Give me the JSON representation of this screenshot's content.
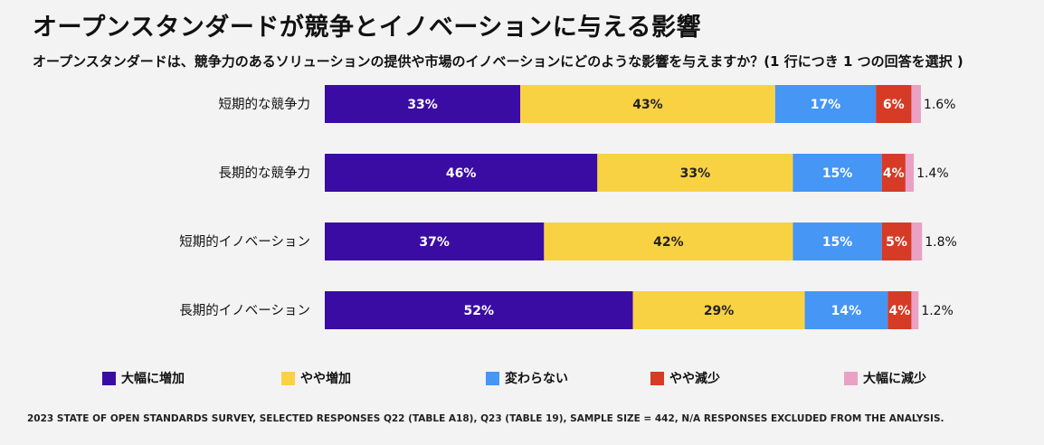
{
  "title": "オープンスタンダードが競争とイノベーションに与える影響",
  "subtitle": "オープンスタンダードは、競争力のあるソリューションの提供や市場のイノベーションにどのような影響を与えますか？(1 行につき 1 つの回答を選択 )",
  "footnote": "2023 STATE OF OPEN STANDARDS SURVEY, SELECTED RESPONSES Q22 (TABLE A18), Q23 (TABLE 19), SAMPLE SIZE = 442, N/A RESPONSES EXCLUDED FROM THE ANALYSIS.",
  "chart_data": {
    "type": "bar",
    "orientation": "horizontal",
    "stacked": true,
    "categories": [
      "短期的な競争力",
      "長期的な競争力",
      "短期的イノベーション",
      "長期的イノベーション"
    ],
    "series": [
      {
        "name": "大幅に増加",
        "color": "#3a0ca3",
        "values": [
          33,
          46,
          37,
          52
        ],
        "labels": [
          "33%",
          "46%",
          "37%",
          "52%"
        ]
      },
      {
        "name": "やや増加",
        "color": "#f9d243",
        "values": [
          43,
          33,
          42,
          29
        ],
        "labels": [
          "43%",
          "33%",
          "42%",
          "29%"
        ]
      },
      {
        "name": "変わらない",
        "color": "#4596f5",
        "values": [
          17,
          15,
          15,
          14
        ],
        "labels": [
          "17%",
          "15%",
          "15%",
          "14%"
        ]
      },
      {
        "name": "やや減少",
        "color": "#d63b26",
        "values": [
          6,
          4,
          5,
          4
        ],
        "labels": [
          "6%",
          "4%",
          "5%",
          "4%"
        ]
      },
      {
        "name": "大幅に減少",
        "color": "#e9a1c4",
        "values": [
          1.6,
          1.4,
          1.8,
          1.2
        ],
        "labels": [
          "1.6%",
          "1.4%",
          "1.8%",
          "1.2%"
        ]
      }
    ],
    "legend_position": "bottom",
    "grid": false
  }
}
